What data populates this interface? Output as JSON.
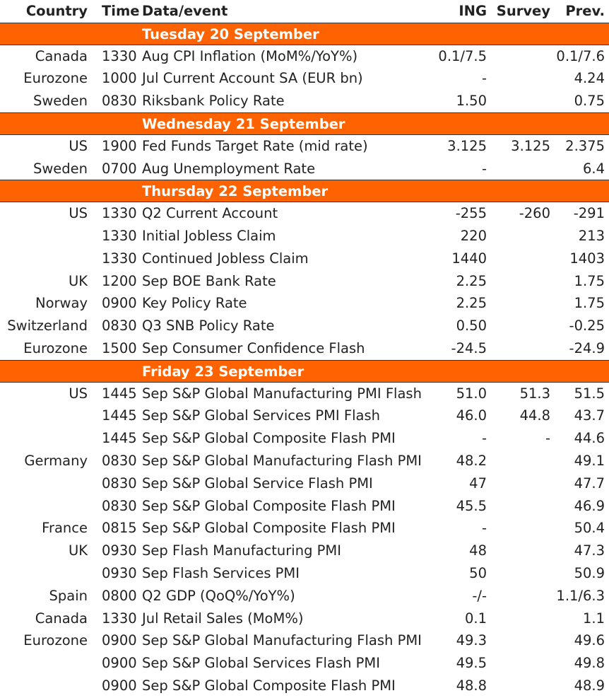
{
  "header": {
    "country": "Country",
    "time": "Time",
    "event": "Data/event",
    "ing": "ING",
    "survey": "Survey",
    "prev": "Prev."
  },
  "rows": [
    {
      "day": "Tuesday 20 September"
    },
    {
      "country": "Canada",
      "time": "1330",
      "event": "Aug CPI Inflation (MoM%/YoY%)",
      "ing": "0.1/7.5",
      "survey": "",
      "prev": "0.1/7.6"
    },
    {
      "country": "Eurozone",
      "time": "1000",
      "event": "Jul Current Account SA (EUR bn)",
      "ing": "-",
      "survey": "",
      "prev": "4.24"
    },
    {
      "country": "Sweden",
      "time": "0830",
      "event": "Riksbank Policy Rate",
      "ing": "1.50",
      "survey": "",
      "prev": "0.75"
    },
    {
      "day": "Wednesday 21 September"
    },
    {
      "country": "US",
      "time": "1900",
      "event": "Fed Funds Target Rate (mid rate)",
      "ing": "3.125",
      "survey": "3.125",
      "prev": "2.375"
    },
    {
      "country": "Sweden",
      "time": "0700",
      "event": "Aug Unemployment Rate",
      "ing": "-",
      "survey": "",
      "prev": "6.4"
    },
    {
      "day": "Thursday 22 September"
    },
    {
      "country": "US",
      "time": "1330",
      "event": "Q2 Current Account",
      "ing": "-255",
      "survey": "-260",
      "prev": "-291"
    },
    {
      "country": "",
      "time": "1330",
      "event": "Initial Jobless Claim",
      "ing": "220",
      "survey": "",
      "prev": "213"
    },
    {
      "country": "",
      "time": "1330",
      "event": "Continued Jobless Claim",
      "ing": "1440",
      "survey": "",
      "prev": "1403"
    },
    {
      "country": "UK",
      "time": "1200",
      "event": "Sep BOE Bank Rate",
      "ing": "2.25",
      "survey": "",
      "prev": "1.75"
    },
    {
      "country": "Norway",
      "time": "0900",
      "event": "Key Policy Rate",
      "ing": "2.25",
      "survey": "",
      "prev": "1.75"
    },
    {
      "country": "Switzerland",
      "time": "0830",
      "event": "Q3 SNB Policy Rate",
      "ing": "0.50",
      "survey": "",
      "prev": "-0.25"
    },
    {
      "country": "Eurozone",
      "time": "1500",
      "event": "Sep Consumer Confidence Flash",
      "ing": "-24.5",
      "survey": "",
      "prev": "-24.9"
    },
    {
      "day": "Friday 23 September"
    },
    {
      "country": "US",
      "time": "1445",
      "event": "Sep S&P Global Manufacturing PMI Flash",
      "ing": "51.0",
      "survey": "51.3",
      "prev": "51.5"
    },
    {
      "country": "",
      "time": "1445",
      "event": "Sep S&P Global Services PMI Flash",
      "ing": "46.0",
      "survey": "44.8",
      "prev": "43.7"
    },
    {
      "country": "",
      "time": "1445",
      "event": "Sep S&P Global Composite Flash PMI",
      "ing": "-",
      "survey": "-",
      "prev": "44.6"
    },
    {
      "country": "Germany",
      "time": "0830",
      "event": "Sep S&P Global Manufacturing Flash PMI",
      "ing": "48.2",
      "survey": "",
      "prev": "49.1"
    },
    {
      "country": "",
      "time": "0830",
      "event": "Sep S&P Global Service Flash PMI",
      "ing": "47",
      "survey": "",
      "prev": "47.7"
    },
    {
      "country": "",
      "time": "0830",
      "event": "Sep S&P Global Composite Flash PMI",
      "ing": "45.5",
      "survey": "",
      "prev": "46.9"
    },
    {
      "country": "France",
      "time": "0815",
      "event": "Sep S&P Global Composite Flash PMI",
      "ing": "-",
      "survey": "",
      "prev": "50.4"
    },
    {
      "country": "UK",
      "time": "0930",
      "event": "Sep Flash Manufacturing PMI",
      "ing": "48",
      "survey": "",
      "prev": "47.3"
    },
    {
      "country": "",
      "time": "0930",
      "event": "Sep Flash Services PMI",
      "ing": "50",
      "survey": "",
      "prev": "50.9"
    },
    {
      "country": "Spain",
      "time": "0800",
      "event": "Q2 GDP (QoQ%/YoY%)",
      "ing": "-/-",
      "survey": "",
      "prev": "1.1/6.3"
    },
    {
      "country": "Canada",
      "time": "1330",
      "event": "Jul Retail Sales (MoM%)",
      "ing": "0.1",
      "survey": "",
      "prev": "1.1"
    },
    {
      "country": "Eurozone",
      "time": "0900",
      "event": "Sep S&P Global Manufacturing Flash PMI",
      "ing": "49.3",
      "survey": "",
      "prev": "49.6"
    },
    {
      "country": "",
      "time": "0900",
      "event": "Sep S&P Global Services Flash PMI",
      "ing": "49.5",
      "survey": "",
      "prev": "49.8"
    },
    {
      "country": "",
      "time": "0900",
      "event": "Sep S&P Global Composite Flash PMI",
      "ing": "48.8",
      "survey": "",
      "prev": "48.9"
    }
  ]
}
